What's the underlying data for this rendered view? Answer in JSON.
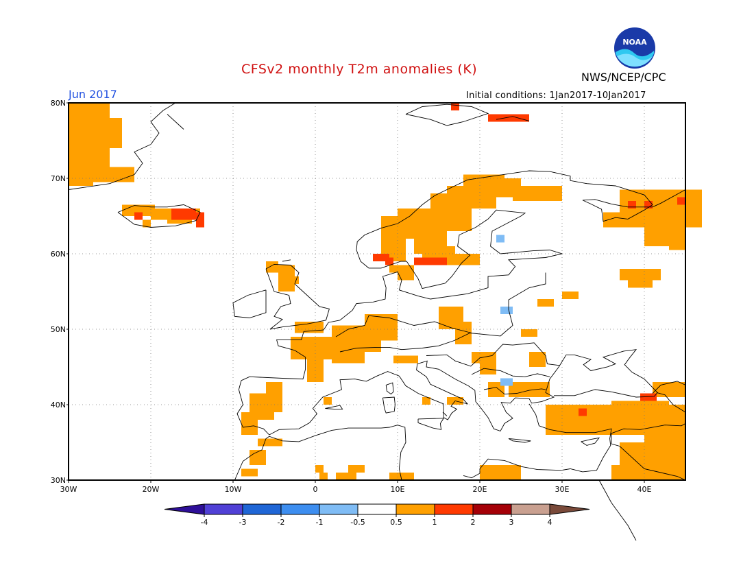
{
  "header": {
    "title": "CFSv2 monthly T2m anomalies (K)",
    "agency": "NWS/NCEP/CPC",
    "month": "Jun 2017",
    "initial_conditions": "Initial conditions: 1Jan2017-10Jan2017",
    "logo_text": "NOAA"
  },
  "map": {
    "lat_labels": [
      "80N",
      "70N",
      "60N",
      "50N",
      "40N",
      "30N"
    ],
    "lon_labels": [
      "30W",
      "20W",
      "10W",
      "0",
      "10E",
      "20E",
      "30E",
      "40E"
    ],
    "lat_range": [
      30,
      80
    ],
    "lon_range": [
      -30,
      45
    ],
    "gridlines": true
  },
  "colorbar": {
    "labels": [
      "-4",
      "-3",
      "-2",
      "-1",
      "-0.5",
      "0.5",
      "1",
      "2",
      "3",
      "4"
    ],
    "colors": [
      "#2e0f99",
      "#5040d6",
      "#1f66d6",
      "#3d8ef0",
      "#7fbcf5",
      "#ffffff",
      "#ffa000",
      "#ff3a00",
      "#a50008",
      "#c9a090",
      "#7a4a3a"
    ]
  },
  "colors": {
    "anomaly_05_1": "#ffa000",
    "anomaly_1_2": "#ff3a00",
    "anomaly_neg_05_1": "#7fbcf5",
    "title_red": "#d01010",
    "month_blue": "#2050e0"
  }
}
